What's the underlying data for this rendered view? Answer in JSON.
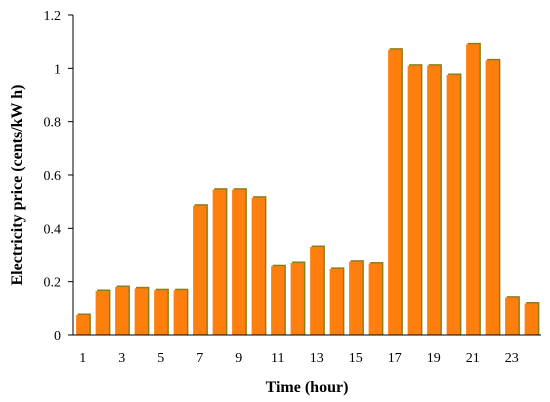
{
  "chart_data": {
    "type": "bar",
    "title": "",
    "xlabel": "Time (hour)",
    "ylabel": "Electricity price (cents/kW h)",
    "ylim": [
      0,
      1.2
    ],
    "yticks": [
      0,
      0.2,
      0.4,
      0.6,
      0.8,
      1,
      1.2
    ],
    "ytick_labels": [
      "0",
      "0.2",
      "0.4",
      "0.6",
      "0.8",
      "1",
      "1.2"
    ],
    "categories": [
      "1",
      "2",
      "3",
      "4",
      "5",
      "6",
      "7",
      "8",
      "9",
      "10",
      "11",
      "12",
      "13",
      "14",
      "15",
      "16",
      "17",
      "18",
      "19",
      "20",
      "21",
      "22",
      "23",
      "24"
    ],
    "xtick_labels_shown": [
      "1",
      "3",
      "5",
      "7",
      "9",
      "11",
      "13",
      "15",
      "17",
      "19",
      "21",
      "23"
    ],
    "values": [
      0.075,
      0.165,
      0.18,
      0.175,
      0.168,
      0.168,
      0.485,
      0.545,
      0.545,
      0.515,
      0.258,
      0.27,
      0.33,
      0.248,
      0.275,
      0.268,
      1.07,
      1.01,
      1.01,
      0.975,
      1.09,
      1.03,
      0.14,
      0.118
    ],
    "grid": false,
    "legend": "none",
    "colors": {
      "bar_fill": "#ff7f0e",
      "bar_shadow": "#8b7d1a",
      "axis": "#000000"
    }
  }
}
